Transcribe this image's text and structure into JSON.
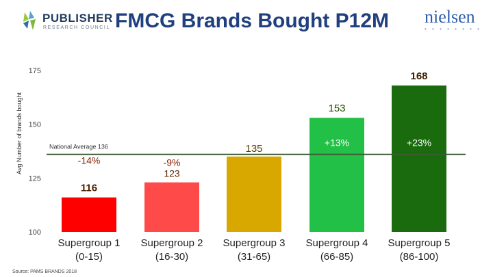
{
  "header": {
    "title": "FMCG Brands Bought P12M",
    "logo_left_name": "PUBLISHER",
    "logo_left_sub": "RESEARCH COUNCIL",
    "logo_right_name": "nielsen",
    "logo_right_dots": "• • • • • • • •"
  },
  "source": "Source: PAMS BRANDS 2018",
  "chart_data": {
    "type": "bar",
    "ylabel": "Avg Number of brands bought",
    "ylim": [
      100,
      175
    ],
    "yticks": [
      100,
      125,
      150,
      175
    ],
    "categories": [
      "Supergroup 1\n(0-15)",
      "Supergroup 2\n(16-30)",
      "Supergroup 3\n(31-65)",
      "Supergroup 4\n(66-85)",
      "Supergroup 5\n(86-100)"
    ],
    "values": [
      116,
      123,
      135,
      153,
      168
    ],
    "value_labels": [
      "116",
      "123",
      "135",
      "153",
      "168"
    ],
    "change_labels": [
      "-14%",
      "-9%",
      "",
      "+13%",
      "+23%"
    ],
    "bar_colors": [
      "#ff0000",
      "#ff4a4a",
      "#d9a800",
      "#22c046",
      "#1a6b0d"
    ],
    "reference_line": {
      "label": "National Average 136",
      "value": 136,
      "color": "#3f5a35"
    },
    "grid": false
  }
}
